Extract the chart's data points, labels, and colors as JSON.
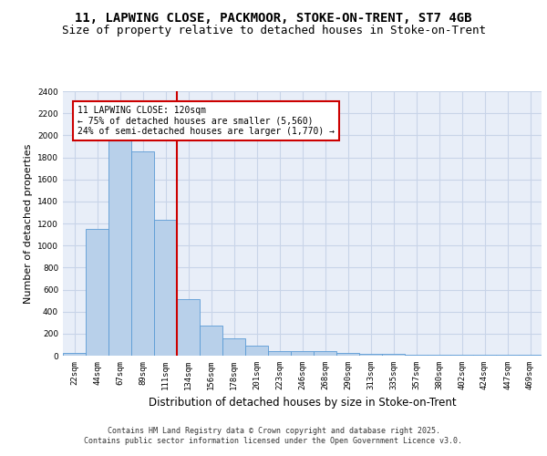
{
  "title_line1": "11, LAPWING CLOSE, PACKMOOR, STOKE-ON-TRENT, ST7 4GB",
  "title_line2": "Size of property relative to detached houses in Stoke-on-Trent",
  "xlabel": "Distribution of detached houses by size in Stoke-on-Trent",
  "ylabel": "Number of detached properties",
  "categories": [
    "22sqm",
    "44sqm",
    "67sqm",
    "89sqm",
    "111sqm",
    "134sqm",
    "156sqm",
    "178sqm",
    "201sqm",
    "223sqm",
    "246sqm",
    "268sqm",
    "290sqm",
    "313sqm",
    "335sqm",
    "357sqm",
    "380sqm",
    "402sqm",
    "424sqm",
    "447sqm",
    "469sqm"
  ],
  "values": [
    25,
    1150,
    1960,
    1850,
    1230,
    510,
    270,
    155,
    90,
    45,
    40,
    40,
    25,
    15,
    15,
    10,
    10,
    5,
    5,
    5,
    5
  ],
  "bar_color": "#b8d0ea",
  "bar_edge_color": "#5b9bd5",
  "grid_color": "#c8d4e8",
  "background_color": "#e8eef8",
  "vline_x": 4.5,
  "vline_color": "#cc0000",
  "annotation_text": "11 LAPWING CLOSE: 120sqm\n← 75% of detached houses are smaller (5,560)\n24% of semi-detached houses are larger (1,770) →",
  "annotation_box_color": "#cc0000",
  "ylim": [
    0,
    2400
  ],
  "yticks": [
    0,
    200,
    400,
    600,
    800,
    1000,
    1200,
    1400,
    1600,
    1800,
    2000,
    2200,
    2400
  ],
  "footer_line1": "Contains HM Land Registry data © Crown copyright and database right 2025.",
  "footer_line2": "Contains public sector information licensed under the Open Government Licence v3.0.",
  "title_fontsize": 10,
  "subtitle_fontsize": 9,
  "tick_fontsize": 6.5,
  "ylabel_fontsize": 8,
  "xlabel_fontsize": 8.5,
  "footer_fontsize": 6,
  "annot_fontsize": 7
}
